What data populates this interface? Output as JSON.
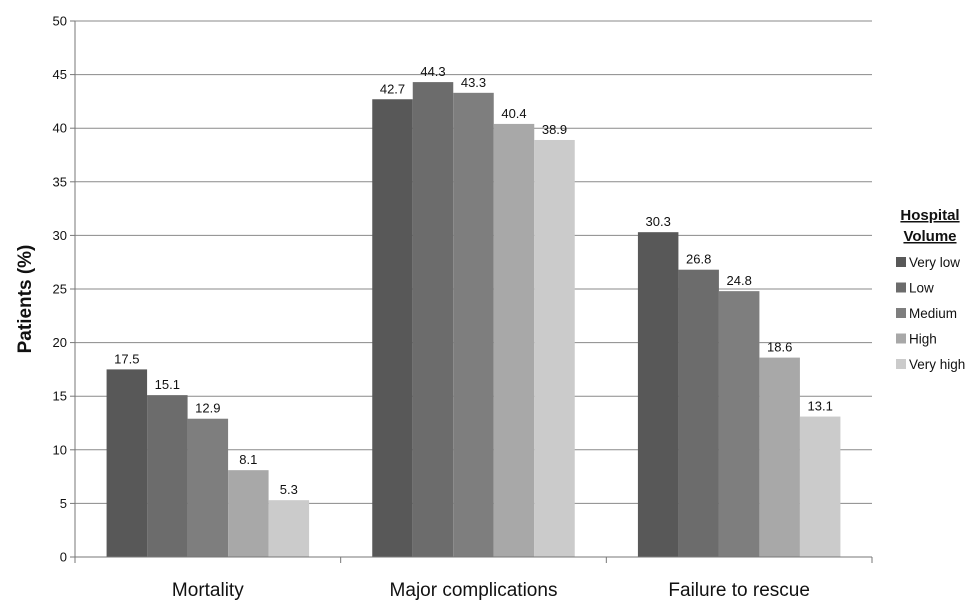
{
  "chart_data": {
    "type": "bar",
    "title": "",
    "xlabel": "",
    "ylabel": "Patients (%)",
    "ylim": [
      0,
      50
    ],
    "yticks": [
      0,
      5,
      10,
      15,
      20,
      25,
      30,
      35,
      40,
      45,
      50
    ],
    "categories": [
      "Mortality",
      "Major complications",
      "Failure to rescue"
    ],
    "series": [
      {
        "name": "Very low",
        "color": "#585858",
        "values": [
          17.5,
          42.7,
          30.3
        ]
      },
      {
        "name": "Low",
        "color": "#6c6c6c",
        "values": [
          15.1,
          44.3,
          26.8
        ]
      },
      {
        "name": "Medium",
        "color": "#7e7e7e",
        "values": [
          12.9,
          43.3,
          24.8
        ]
      },
      {
        "name": "High",
        "color": "#a8a8a8",
        "values": [
          8.1,
          40.4,
          18.6
        ]
      },
      {
        "name": "Very high",
        "color": "#cbcbcb",
        "values": [
          5.3,
          38.9,
          13.1
        ]
      }
    ],
    "legend": {
      "title_line1": "Hospital",
      "title_line2": "Volume",
      "position": "right"
    },
    "grid": true
  }
}
